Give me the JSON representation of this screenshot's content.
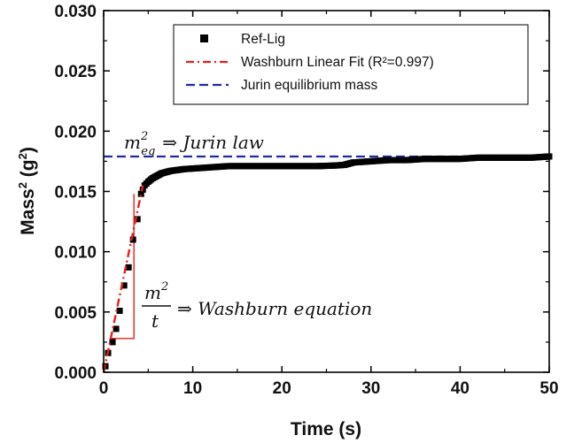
{
  "chart_data": {
    "type": "scatter",
    "xlabel": "Time (s)",
    "ylabel_main": "Mass",
    "ylabel_sup": "2",
    "ylabel_unit_open": " (g",
    "ylabel_unit_sup": "2",
    "ylabel_unit_close": ")",
    "xlim": [
      0,
      50
    ],
    "ylim": [
      0,
      0.03
    ],
    "x_ticks": [
      "0",
      "10",
      "20",
      "30",
      "40",
      "50"
    ],
    "y_ticks": [
      "0.000",
      "0.005",
      "0.010",
      "0.015",
      "0.020",
      "0.025",
      "0.030"
    ],
    "grid": false,
    "legend_placement": "top-right",
    "legend": [
      {
        "label": "Ref-Lig",
        "marker": "square",
        "color": "#000000"
      },
      {
        "label": "Washburn Linear Fit (R²=0.997)",
        "marker": "dash-dot",
        "color": "#e8201a"
      },
      {
        "label": "Jurin equilibrium mass",
        "marker": "dash",
        "color": "#1f2aa8"
      }
    ],
    "series": [
      {
        "name": "Ref-Lig",
        "x": [
          0.2,
          0.5,
          1.0,
          1.4,
          1.8,
          2.3,
          2.8,
          3.3,
          3.8,
          4.2,
          4.6,
          5.0,
          5.5,
          6.0,
          6.5,
          7.0,
          7.5,
          8.0,
          8.5,
          9.0,
          10.0,
          11.0,
          12.0,
          14.0,
          16.0,
          18.0,
          20.0,
          22.0,
          24.0,
          26.0,
          27.0,
          28.0,
          30.0,
          32.0,
          34.0,
          36.0,
          38.0,
          40.0,
          42.0,
          44.0,
          46.0,
          48.0,
          50.0
        ],
        "y": [
          0.0005,
          0.0016,
          0.0025,
          0.0036,
          0.0051,
          0.0072,
          0.0087,
          0.011,
          0.0127,
          0.0148,
          0.0155,
          0.0158,
          0.0161,
          0.0163,
          0.0165,
          0.0166,
          0.0167,
          0.01675,
          0.0168,
          0.01685,
          0.0169,
          0.01695,
          0.017,
          0.0171,
          0.0171,
          0.0171,
          0.0171,
          0.0171,
          0.0171,
          0.01715,
          0.0172,
          0.0174,
          0.0175,
          0.0176,
          0.0176,
          0.0177,
          0.0177,
          0.0177,
          0.0178,
          0.0178,
          0.0178,
          0.0178,
          0.0179
        ]
      },
      {
        "name": "Washburn Linear Fit (R²=0.997)",
        "x": [
          0.0,
          4.4
        ],
        "y": [
          0.0,
          0.0155
        ]
      },
      {
        "name": "Jurin equilibrium mass",
        "x": [
          0.0,
          50.0
        ],
        "y": [
          0.0179,
          0.0179
        ]
      }
    ],
    "annotations": {
      "jurin": {
        "m": "m",
        "sup": "2",
        "sub": "eq",
        "text": "⇒ Jurin law"
      },
      "washburn": {
        "numerator": "m",
        "num_sup": "2",
        "denominator": "t",
        "text": "⇒ Washburn equation"
      },
      "slope_triangle": {
        "x": [
          0.9,
          3.4
        ],
        "y": [
          0.0028,
          0.0148
        ],
        "color": "#e8201a"
      }
    }
  }
}
